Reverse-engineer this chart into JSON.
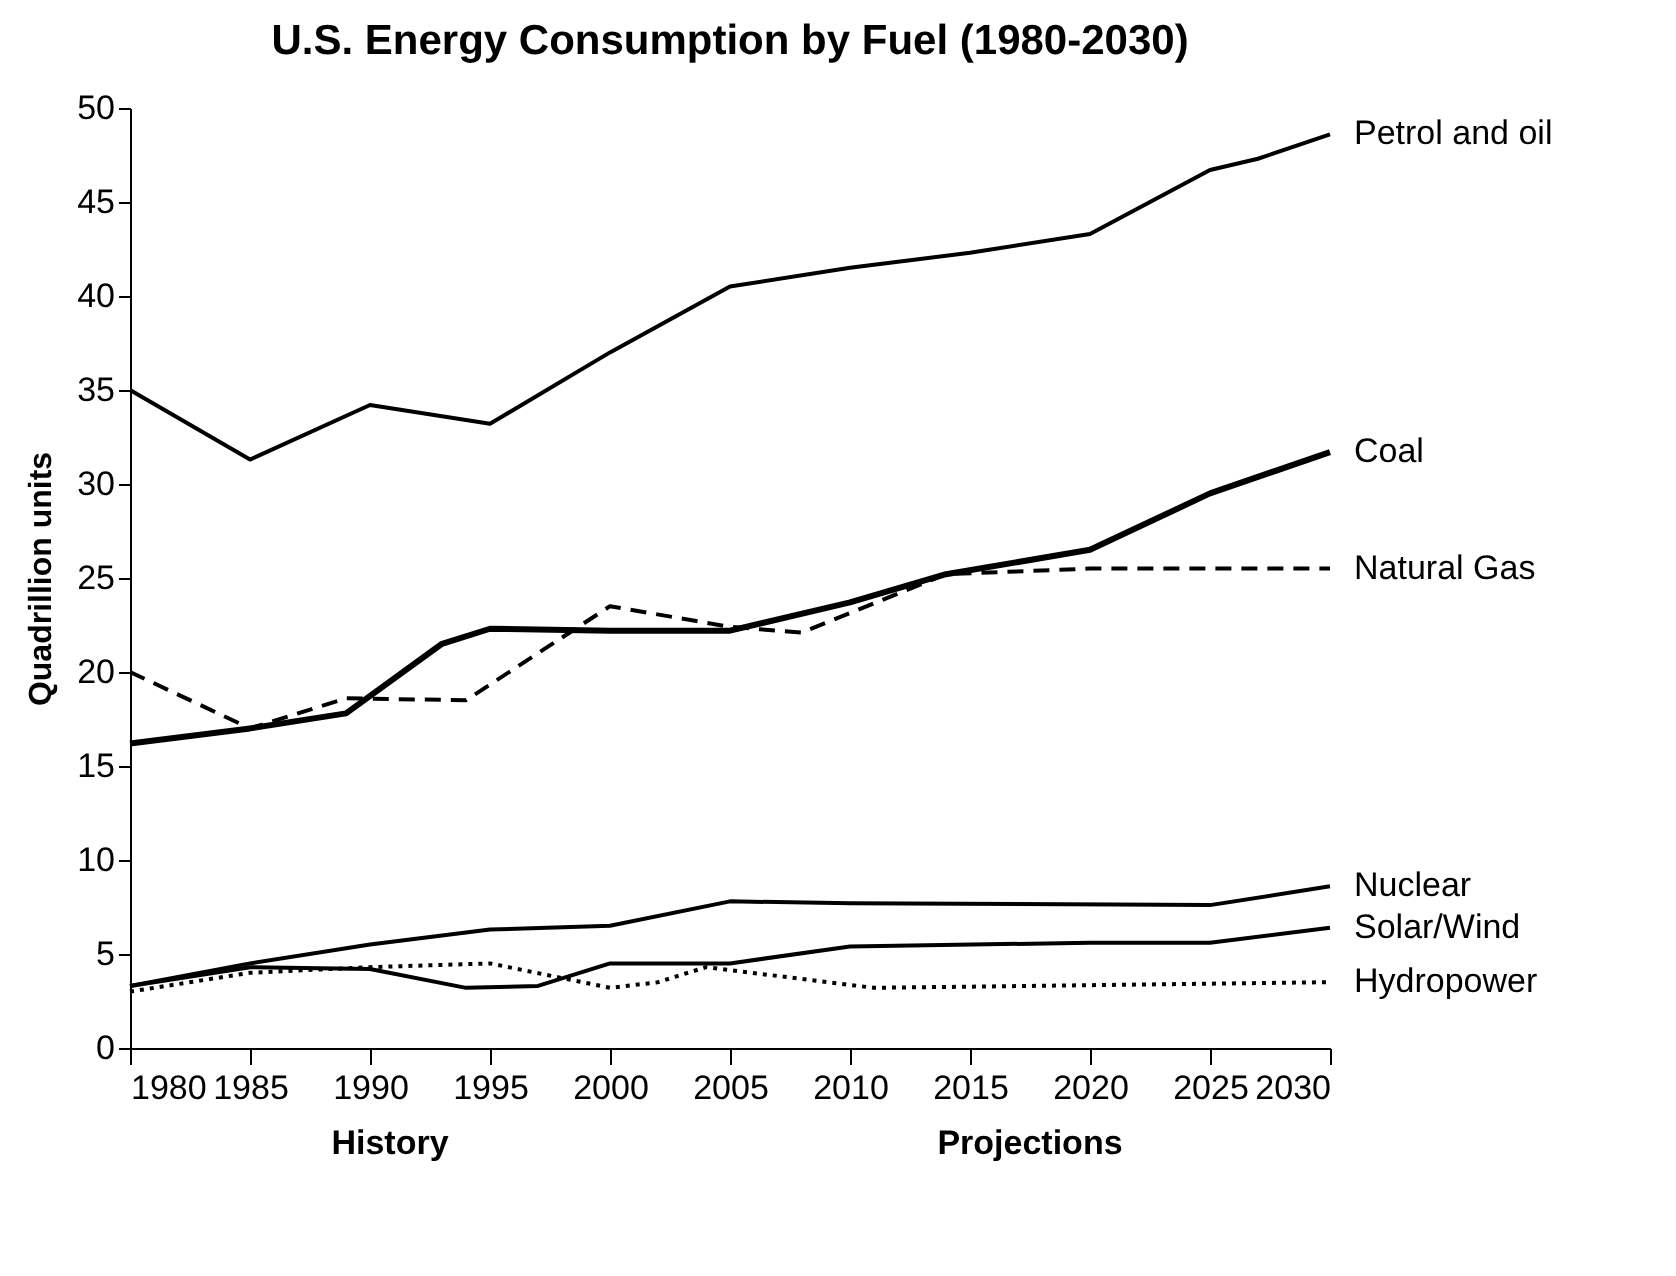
{
  "chart_data": {
    "type": "line",
    "title": "U.S. Energy Consumption by Fuel (1980-2030)",
    "ylabel": "Quadrillion units",
    "xlim": [
      1980,
      2030
    ],
    "xticks": [
      1980,
      1985,
      1990,
      1995,
      2000,
      2005,
      2010,
      2015,
      2020,
      2025,
      2030
    ],
    "ylim": [
      0,
      50
    ],
    "yticks": [
      0,
      5,
      10,
      15,
      20,
      25,
      30,
      35,
      40,
      45,
      50
    ],
    "grid": false,
    "annotations": [
      "History",
      "Projections"
    ],
    "series": [
      {
        "name": "Petrol and oil",
        "color": "#000000",
        "line_style": "solid",
        "x": [
          1980,
          1985,
          1990,
          1995,
          2000,
          2005,
          2010,
          2015,
          2020,
          2025,
          2027,
          2030
        ],
        "values": [
          35,
          31.3,
          34.2,
          33.2,
          37,
          40.5,
          41.5,
          42.3,
          43.3,
          46.7,
          47.3,
          48.6
        ]
      },
      {
        "name": "Coal",
        "color": "#000000",
        "line_style": "solid",
        "x": [
          1980,
          1985,
          1989,
          1993,
          1995,
          2000,
          2005,
          2010,
          2014,
          2020,
          2025,
          2030
        ],
        "values": [
          16.2,
          17,
          17.8,
          21.5,
          22.3,
          22.2,
          22.2,
          23.7,
          25.2,
          26.5,
          29.5,
          31.7
        ]
      },
      {
        "name": "Natural Gas",
        "color": "#000000",
        "line_style": "dashed",
        "x": [
          1980,
          1985,
          1989,
          1994,
          2000,
          2005,
          2008,
          2014,
          2020,
          2030
        ],
        "values": [
          20,
          17,
          18.6,
          18.5,
          23.5,
          22.4,
          22.1,
          25.2,
          25.5,
          25.5
        ]
      },
      {
        "name": "Nuclear",
        "color": "#000000",
        "line_style": "solid",
        "x": [
          1980,
          1985,
          1990,
          1995,
          2000,
          2005,
          2010,
          2025,
          2030
        ],
        "values": [
          3.3,
          4.5,
          5.5,
          6.3,
          6.5,
          7.8,
          7.7,
          7.6,
          8.6
        ]
      },
      {
        "name": "Solar/Wind",
        "color": "#000000",
        "line_style": "solid",
        "x": [
          1980,
          1985,
          1990,
          1994,
          1997,
          2000,
          2005,
          2010,
          2020,
          2025,
          2030
        ],
        "values": [
          3.3,
          4.3,
          4.2,
          3.2,
          3.3,
          4.5,
          4.5,
          5.4,
          5.6,
          5.6,
          6.4
        ]
      },
      {
        "name": "Hydropower",
        "color": "#000000",
        "line_style": "dotted",
        "x": [
          1980,
          1985,
          1990,
          1995,
          2000,
          2002,
          2004,
          2011,
          2030
        ],
        "values": [
          3,
          4,
          4.3,
          4.5,
          3.2,
          3.5,
          4.3,
          3.2,
          3.5
        ]
      }
    ]
  }
}
